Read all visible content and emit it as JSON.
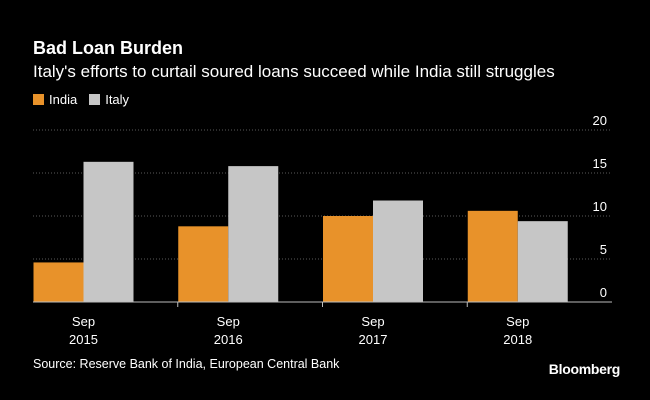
{
  "header": {
    "title": "Bad Loan Burden",
    "subtitle": "Italy's efforts to curtail soured loans succeed while India still struggles"
  },
  "legend": [
    {
      "label": "India",
      "color": "#e8922a"
    },
    {
      "label": "Italy",
      "color": "#c6c6c6"
    }
  ],
  "chart_data": {
    "type": "bar",
    "categories": [
      [
        "Sep",
        "2015"
      ],
      [
        "Sep",
        "2016"
      ],
      [
        "Sep",
        "2017"
      ],
      [
        "Sep",
        "2018"
      ]
    ],
    "series": [
      {
        "name": "India",
        "values": [
          4.6,
          8.8,
          10.0,
          10.6
        ],
        "color": "#e8922a"
      },
      {
        "name": "Italy",
        "values": [
          16.3,
          15.8,
          11.8,
          9.4
        ],
        "color": "#c6c6c6"
      }
    ],
    "yticks": [
      0,
      5,
      10,
      15,
      20
    ],
    "ylim": [
      0,
      20
    ],
    "grid": true,
    "grid_color": "#5a5a5a",
    "axis_position": "right"
  },
  "footer": {
    "source": "Source: Reserve Bank of India, European Central Bank",
    "brand": "Bloomberg"
  }
}
